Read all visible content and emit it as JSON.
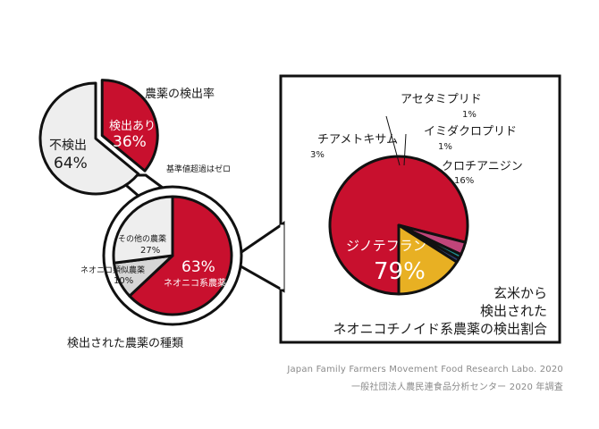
{
  "credits": {
    "english": "Japan Family Farmers Movement Food Research Labo. 2020",
    "japanese": "一般社団法人農民連食品分析センター 2020 年調査"
  },
  "colors": {
    "red": "#c8102e",
    "light_gray": "#eeeeee",
    "gray": "#d6d6d6",
    "pink": "#c0457a",
    "teal": "#1f8f8f",
    "navy": "#2d3e73",
    "gold": "#e8b023"
  },
  "chart_data": [
    {
      "type": "pie",
      "title": "農薬の検出率",
      "slices": [
        {
          "label": "検出あり",
          "value": 36,
          "value_label": "36%",
          "color": "#c8102e",
          "exploded": true
        },
        {
          "label": "不検出",
          "value": 64,
          "value_label": "64%",
          "color": "#eeeeee",
          "exploded": false
        }
      ],
      "annotation": "基準値超過はゼロ"
    },
    {
      "type": "pie",
      "title": "検出された農薬の種類",
      "slices": [
        {
          "label": "ネオニコ系農薬",
          "value": 63,
          "value_label": "63%",
          "color": "#c8102e"
        },
        {
          "label": "ネオニコ類似農薬",
          "value": 10,
          "value_label": "10%",
          "color": "#d6d6d6"
        },
        {
          "label": "その他の農薬",
          "value": 27,
          "value_label": "27%",
          "color": "#eeeeee"
        }
      ]
    },
    {
      "type": "pie",
      "title": "玄米から\n検出された\nネオニコチノイド系農薬の検出割合",
      "slices": [
        {
          "label": "ジノテフラン",
          "value": 79,
          "value_label": "79%",
          "color": "#c8102e"
        },
        {
          "label": "チアメトキサム",
          "value": 3,
          "value_label": "3%",
          "color": "#c0457a"
        },
        {
          "label": "アセタミプリド",
          "value": 1,
          "value_label": "1%",
          "color": "#1f8f8f"
        },
        {
          "label": "イミダクロプリド",
          "value": 1,
          "value_label": "1%",
          "color": "#2d3e73"
        },
        {
          "label": "クロチアニジン",
          "value": 16,
          "value_label": "16%",
          "color": "#e8b023"
        }
      ]
    }
  ]
}
